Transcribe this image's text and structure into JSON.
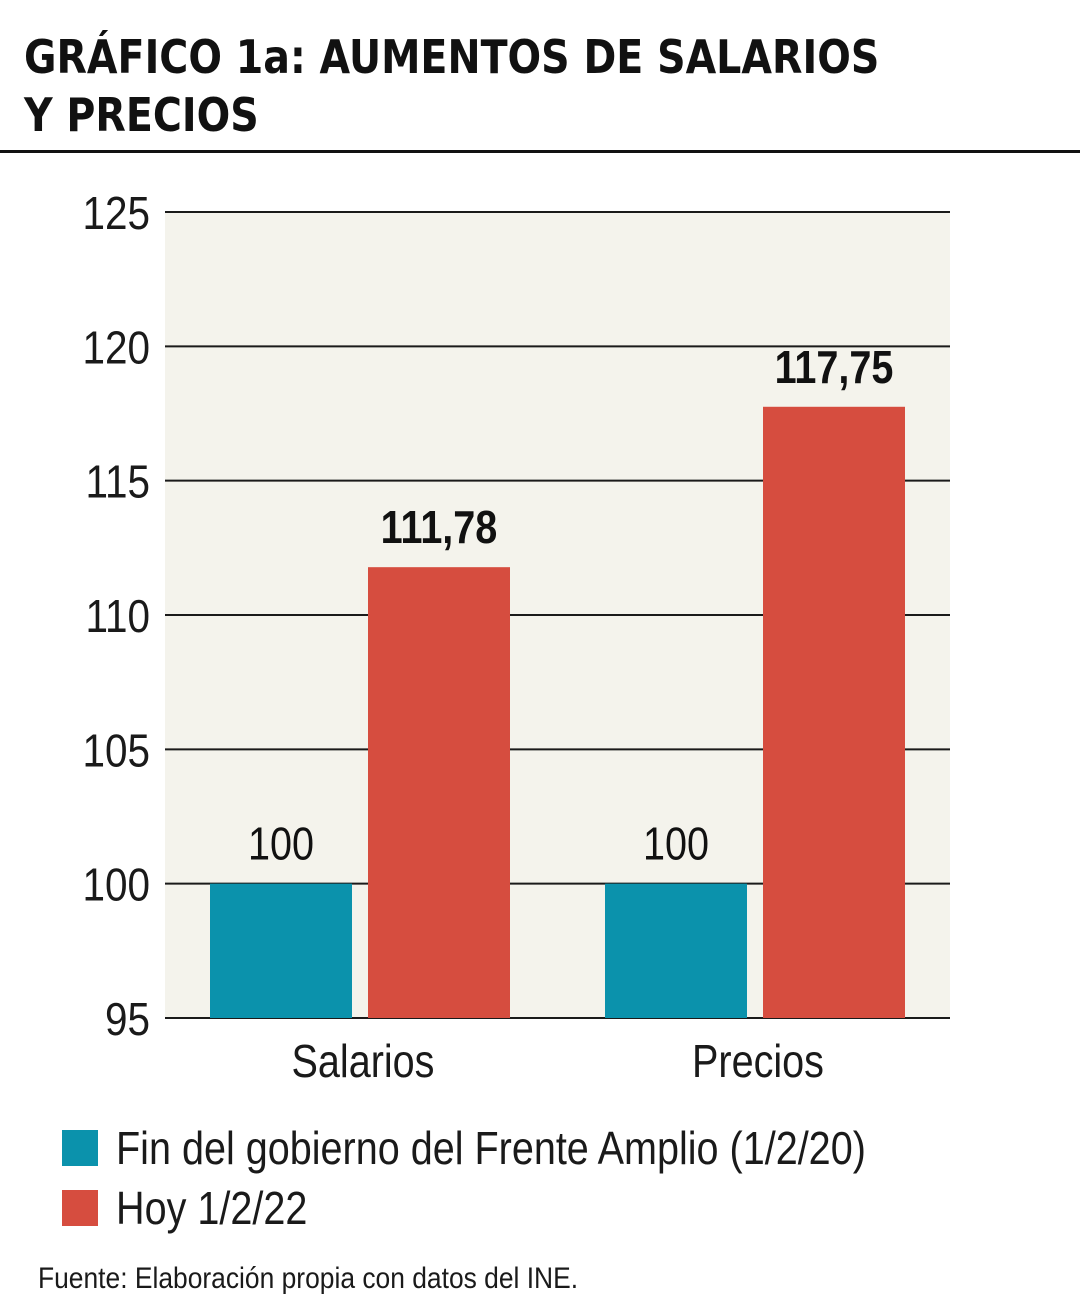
{
  "title": "GRÁFICO 1a: AUMENTOS DE SALARIOS Y PRECIOS",
  "source": "Fuente: Elaboración propia con datos del INE.",
  "colors": {
    "background_plot": "#f4f3ec",
    "teal": "#0b92ac",
    "red": "#d64d3f",
    "text": "#1a1a1a"
  },
  "chart_data": {
    "type": "bar",
    "categories": [
      "Salarios",
      "Precios"
    ],
    "series": [
      {
        "name": "Fin del gobierno del Frente Amplio (1/2/20)",
        "values": [
          100,
          100
        ],
        "labels": [
          "100",
          "100"
        ],
        "color": "#0b92ac"
      },
      {
        "name": "Hoy 1/2/22",
        "values": [
          111.78,
          117.75
        ],
        "labels": [
          "111,78",
          "117,75"
        ],
        "color": "#d64d3f"
      }
    ],
    "ylim": [
      95,
      125
    ],
    "yticks": [
      "95",
      "100",
      "105",
      "110",
      "115",
      "120",
      "125"
    ],
    "grid": true,
    "legend": "bottom",
    "xlabel": "",
    "ylabel": ""
  }
}
